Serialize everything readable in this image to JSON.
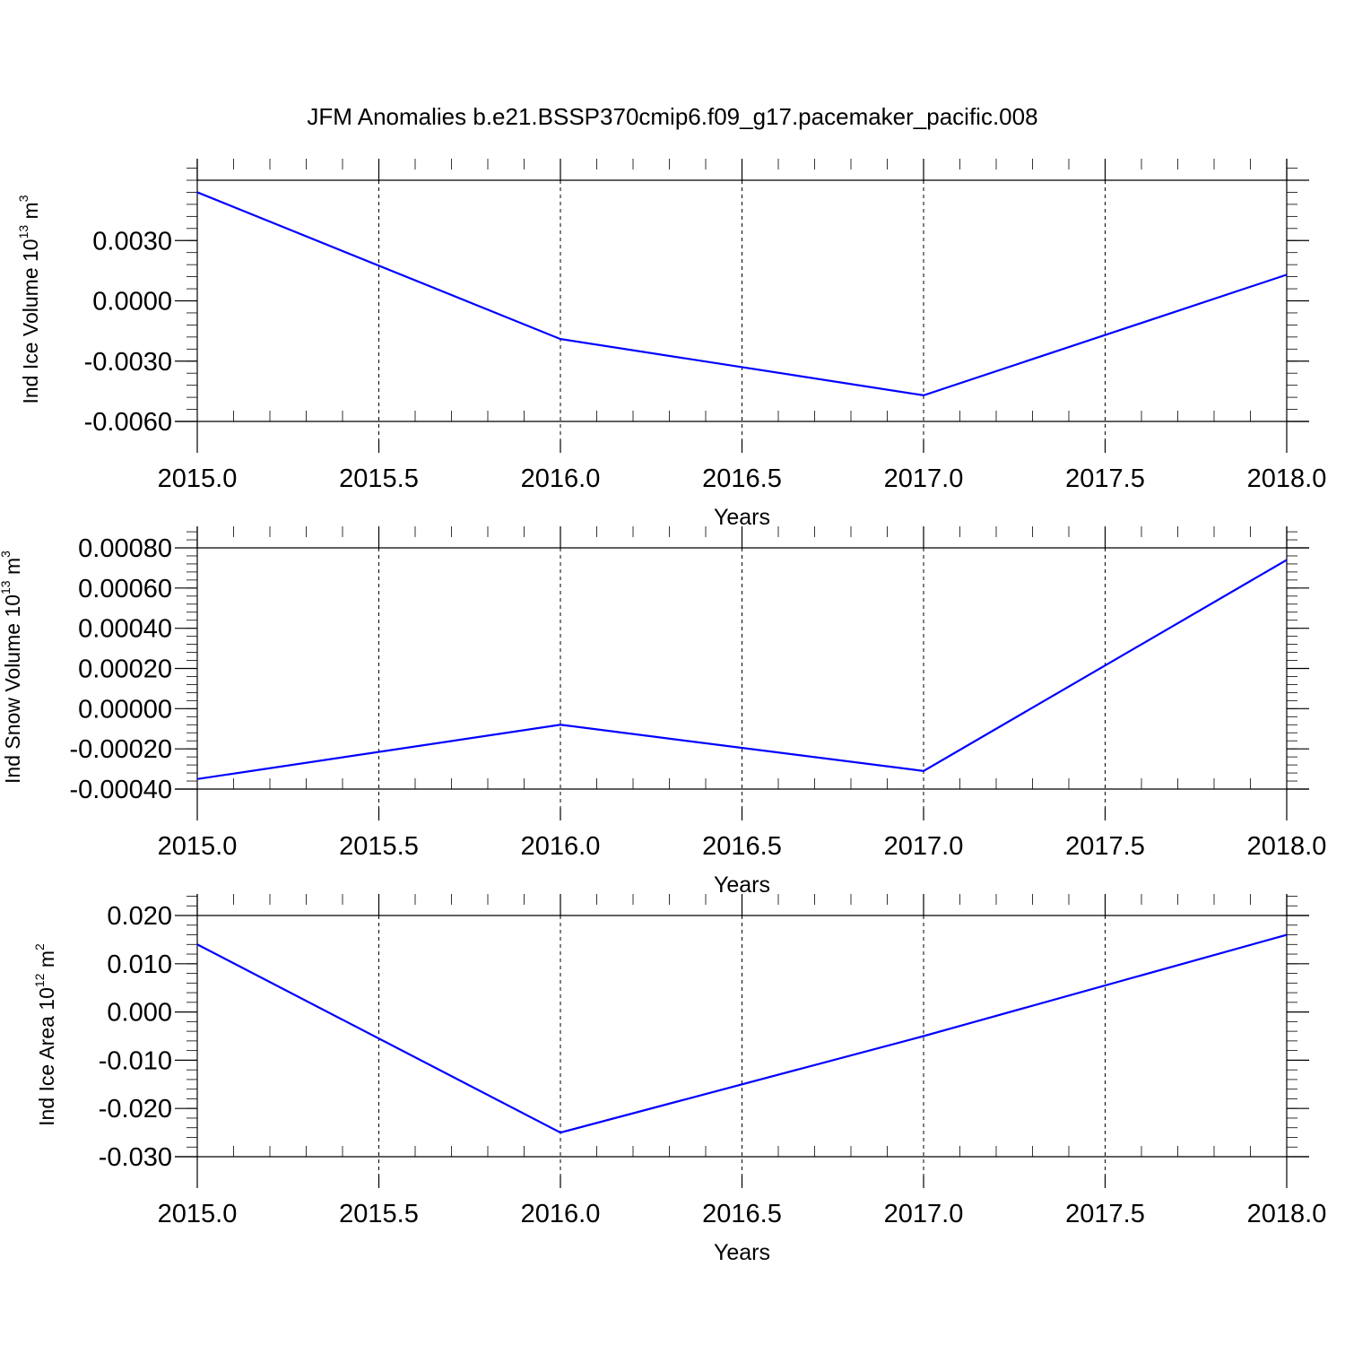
{
  "title": "JFM Anomalies b.e21.BSSP370cmip6.f09_g17.pacemaker_pacific.008",
  "colors": {
    "line": "#0000ff",
    "axis": "#000000",
    "grid": "#000000"
  },
  "chart_data": [
    {
      "type": "line",
      "ylabel": {
        "text": "Ind Ice Volume 10",
        "exponent": "13",
        "unit": " m",
        "unit_exponent": "3"
      },
      "xlabel": "Years",
      "x": [
        2015,
        2016,
        2017,
        2018
      ],
      "series": [
        {
          "values": [
            0.0054,
            -0.0019,
            -0.0047,
            0.0013
          ]
        }
      ],
      "xlim": [
        2015.0,
        2018.0
      ],
      "ylim": [
        -0.006,
        0.006
      ],
      "xticks": [
        "2015.0",
        "2015.5",
        "2016.0",
        "2016.5",
        "2017.0",
        "2017.5",
        "2018.0"
      ],
      "yticks": [
        "-0.0060",
        "-0.0030",
        "0.0000",
        "0.0030"
      ],
      "grid": "vertical dashed"
    },
    {
      "type": "line",
      "ylabel": {
        "text": "Ind Snow Volume 10",
        "exponent": "13",
        "unit": " m",
        "unit_exponent": "3"
      },
      "xlabel": "Years",
      "x": [
        2015,
        2016,
        2017,
        2018
      ],
      "series": [
        {
          "values": [
            -0.00035,
            -8e-05,
            -0.00031,
            0.00074
          ]
        }
      ],
      "xlim": [
        2015.0,
        2018.0
      ],
      "ylim": [
        -0.0004,
        0.0008
      ],
      "xticks": [
        "2015.0",
        "2015.5",
        "2016.0",
        "2016.5",
        "2017.0",
        "2017.5",
        "2018.0"
      ],
      "yticks": [
        "-0.00040",
        "-0.00020",
        "0.00000",
        "0.00020",
        "0.00040",
        "0.00060",
        "0.00080"
      ],
      "grid": "vertical dashed"
    },
    {
      "type": "line",
      "ylabel": {
        "text": "Ind Ice Area 10",
        "exponent": "12",
        "unit": " m",
        "unit_exponent": "2"
      },
      "xlabel": "Years",
      "x": [
        2015,
        2016,
        2017,
        2018
      ],
      "series": [
        {
          "values": [
            0.014,
            -0.025,
            -0.005,
            0.016
          ]
        }
      ],
      "xlim": [
        2015.0,
        2018.0
      ],
      "ylim": [
        -0.03,
        0.02
      ],
      "xticks": [
        "2015.0",
        "2015.5",
        "2016.0",
        "2016.5",
        "2017.0",
        "2017.5",
        "2018.0"
      ],
      "yticks": [
        "-0.030",
        "-0.020",
        "-0.010",
        "0.000",
        "0.010",
        "0.020"
      ],
      "grid": "vertical dashed"
    }
  ]
}
